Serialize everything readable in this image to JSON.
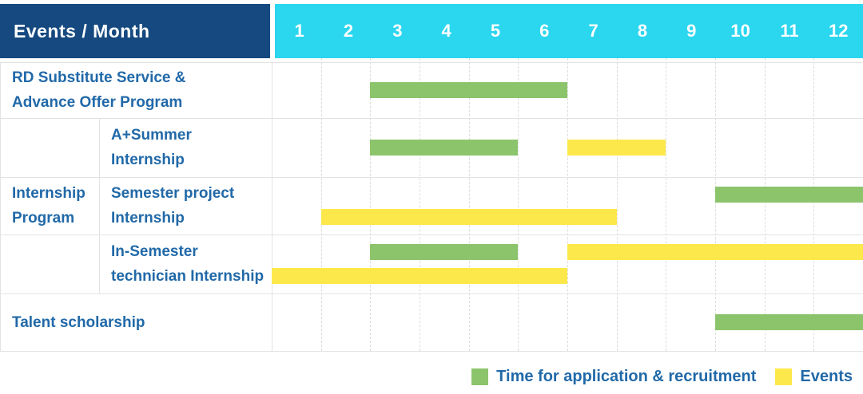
{
  "header": {
    "title": "Events / Month",
    "months": [
      "1",
      "2",
      "3",
      "4",
      "5",
      "6",
      "7",
      "8",
      "9",
      "10",
      "11",
      "12"
    ]
  },
  "group_label": "Internship\nProgram",
  "chart_data": {
    "type": "gantt",
    "x_axis": {
      "unit": "month",
      "min": 1,
      "max": 12
    },
    "series_legend": [
      "Time for application & recruitment",
      "Events"
    ],
    "rows": [
      {
        "group": "",
        "label": "RD Substitute Service &\nAdvance Offer Program",
        "bars": [
          {
            "series": "Time for application & recruitment",
            "start_month": 3,
            "end_month": 6,
            "line": "single"
          }
        ]
      },
      {
        "group": "Internship Program",
        "label": "A+Summer\nInternship",
        "bars": [
          {
            "series": "Time for application & recruitment",
            "start_month": 3,
            "end_month": 5,
            "line": "single"
          },
          {
            "series": "Events",
            "start_month": 7,
            "end_month": 8,
            "line": "single"
          }
        ]
      },
      {
        "group": "Internship Program",
        "label": "Semester project\nInternship",
        "bars": [
          {
            "series": "Time for application & recruitment",
            "start_month": 10,
            "end_month": 12,
            "line": "top"
          },
          {
            "series": "Events",
            "start_month": 2,
            "end_month": 7,
            "line": "bottom"
          }
        ]
      },
      {
        "group": "Internship Program",
        "label": "In-Semester\ntechnician Internship",
        "bars": [
          {
            "series": "Time for application & recruitment",
            "start_month": 3,
            "end_month": 5,
            "line": "top"
          },
          {
            "series": "Events",
            "start_month": 7,
            "end_month": 12,
            "line": "top"
          },
          {
            "series": "Events",
            "start_month": 1,
            "end_month": 6,
            "line": "bottom"
          }
        ]
      },
      {
        "group": "",
        "label": "Talent scholarship",
        "bars": [
          {
            "series": "Time for application & recruitment",
            "start_month": 10,
            "end_month": 12,
            "line": "single"
          }
        ]
      }
    ]
  },
  "legend": {
    "items": [
      {
        "label": "Time for application & recruitment",
        "series": "Time for application & recruitment"
      },
      {
        "label": "Events",
        "series": "Events"
      }
    ]
  },
  "colors": {
    "header_bg": "#15497f",
    "months_bg": "#2bd6ef",
    "recruitment_bar": "#8cc46b",
    "event_bar": "#fde84b",
    "label_text": "#2169a8",
    "grid_line": "#e3e3e3"
  }
}
